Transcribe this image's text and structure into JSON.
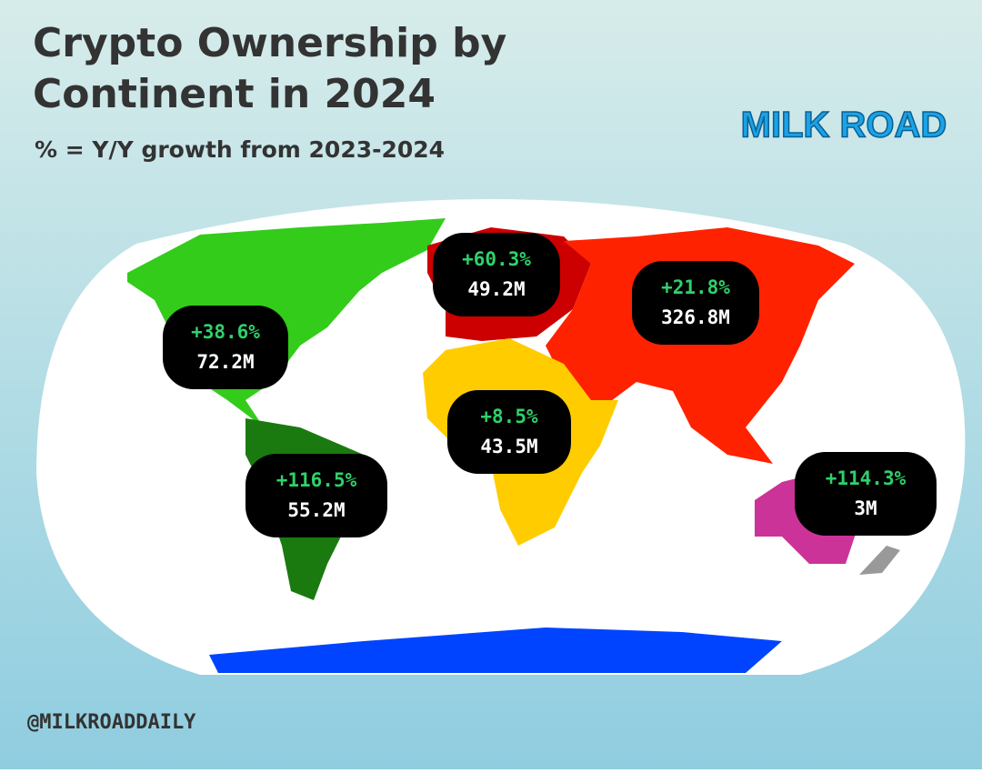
{
  "header": {
    "title_lines": [
      "Crypto Ownership by",
      "Continent in 2024"
    ],
    "subtitle": "% = Y/Y growth from 2023-2024"
  },
  "logo": {
    "text": "MILK ROAD"
  },
  "regions": [
    {
      "growth": "+38.6%",
      "owners": "72.2M"
    },
    {
      "growth": "+60.3%",
      "owners": "49.2M"
    },
    {
      "growth": "+21.8%",
      "owners": "326.8M"
    },
    {
      "growth": "+8.5%",
      "owners": "43.5M"
    },
    {
      "growth": "+116.5%",
      "owners": "55.2M"
    },
    {
      "growth": "+114.3%",
      "owners": "3M"
    }
  ],
  "footer": {
    "handle": "@MILKROADDAILY"
  }
}
